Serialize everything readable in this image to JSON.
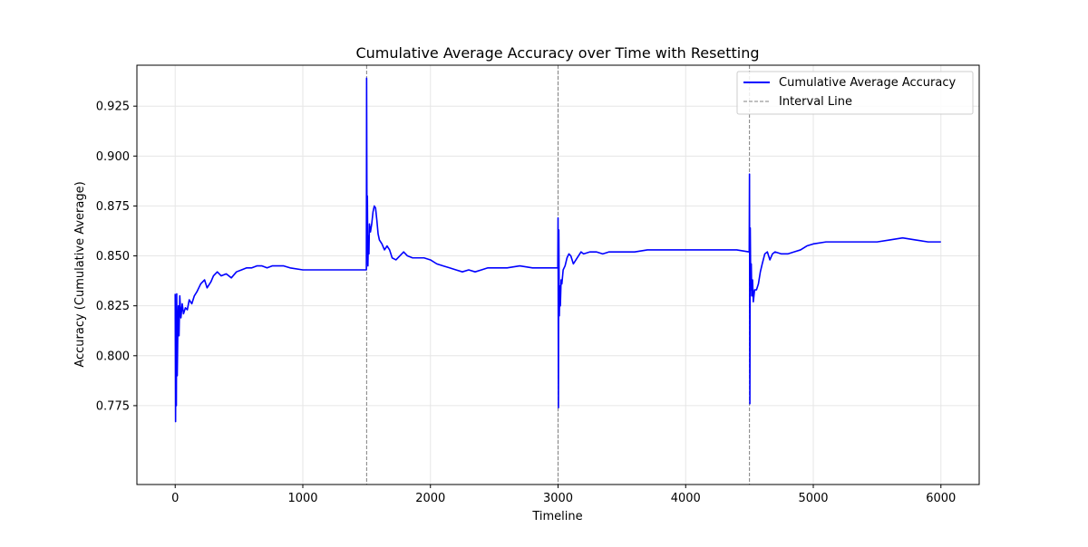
{
  "chart_data": {
    "type": "line",
    "title": "Cumulative Average Accuracy over Time with Resetting",
    "xlabel": "Timeline",
    "ylabel": "Accuracy (Cumulative Average)",
    "xlim": [
      -300,
      6300
    ],
    "ylim": [
      0.7355,
      0.9455
    ],
    "x_ticks": [
      0,
      1000,
      2000,
      3000,
      4000,
      5000,
      6000
    ],
    "x_tick_labels": [
      "0",
      "1000",
      "2000",
      "3000",
      "4000",
      "5000",
      "6000"
    ],
    "y_ticks": [
      0.775,
      0.8,
      0.825,
      0.85,
      0.875,
      0.9,
      0.925
    ],
    "y_tick_labels": [
      "0.775",
      "0.800",
      "0.825",
      "0.850",
      "0.875",
      "0.900",
      "0.925"
    ],
    "grid": true,
    "legend_position": "upper right",
    "colors": {
      "series": "#0000ff",
      "interval_line": "#808080",
      "grid": "#e6e6e6",
      "axes": "#000000"
    },
    "series": [
      {
        "name": "Cumulative Average Accuracy",
        "style": "solid",
        "points": [
          [
            0,
            0.831
          ],
          [
            3,
            0.767
          ],
          [
            6,
            0.822
          ],
          [
            9,
            0.775
          ],
          [
            12,
            0.831
          ],
          [
            16,
            0.79
          ],
          [
            20,
            0.809
          ],
          [
            25,
            0.825
          ],
          [
            30,
            0.81
          ],
          [
            36,
            0.83
          ],
          [
            45,
            0.819
          ],
          [
            55,
            0.826
          ],
          [
            65,
            0.821
          ],
          [
            80,
            0.824
          ],
          [
            95,
            0.823
          ],
          [
            110,
            0.828
          ],
          [
            130,
            0.826
          ],
          [
            150,
            0.83
          ],
          [
            170,
            0.832
          ],
          [
            200,
            0.836
          ],
          [
            230,
            0.838
          ],
          [
            250,
            0.834
          ],
          [
            280,
            0.837
          ],
          [
            300,
            0.84
          ],
          [
            330,
            0.842
          ],
          [
            360,
            0.84
          ],
          [
            400,
            0.841
          ],
          [
            440,
            0.839
          ],
          [
            480,
            0.842
          ],
          [
            520,
            0.843
          ],
          [
            560,
            0.844
          ],
          [
            600,
            0.844
          ],
          [
            640,
            0.845
          ],
          [
            680,
            0.845
          ],
          [
            720,
            0.844
          ],
          [
            760,
            0.845
          ],
          [
            800,
            0.845
          ],
          [
            850,
            0.845
          ],
          [
            900,
            0.844
          ],
          [
            1000,
            0.843
          ],
          [
            1100,
            0.843
          ],
          [
            1200,
            0.843
          ],
          [
            1300,
            0.843
          ],
          [
            1400,
            0.843
          ],
          [
            1498,
            0.843
          ],
          [
            1500,
            0.939
          ],
          [
            1503,
            0.862
          ],
          [
            1506,
            0.88
          ],
          [
            1510,
            0.845
          ],
          [
            1514,
            0.86
          ],
          [
            1518,
            0.851
          ],
          [
            1522,
            0.866
          ],
          [
            1530,
            0.862
          ],
          [
            1540,
            0.866
          ],
          [
            1550,
            0.872
          ],
          [
            1560,
            0.875
          ],
          [
            1570,
            0.874
          ],
          [
            1580,
            0.868
          ],
          [
            1590,
            0.861
          ],
          [
            1600,
            0.858
          ],
          [
            1620,
            0.856
          ],
          [
            1640,
            0.853
          ],
          [
            1660,
            0.855
          ],
          [
            1680,
            0.853
          ],
          [
            1700,
            0.849
          ],
          [
            1730,
            0.848
          ],
          [
            1760,
            0.85
          ],
          [
            1790,
            0.852
          ],
          [
            1820,
            0.85
          ],
          [
            1860,
            0.849
          ],
          [
            1900,
            0.849
          ],
          [
            1950,
            0.849
          ],
          [
            2000,
            0.848
          ],
          [
            2050,
            0.846
          ],
          [
            2100,
            0.845
          ],
          [
            2150,
            0.844
          ],
          [
            2200,
            0.843
          ],
          [
            2250,
            0.842
          ],
          [
            2300,
            0.843
          ],
          [
            2350,
            0.842
          ],
          [
            2400,
            0.843
          ],
          [
            2450,
            0.844
          ],
          [
            2500,
            0.844
          ],
          [
            2600,
            0.844
          ],
          [
            2700,
            0.845
          ],
          [
            2800,
            0.844
          ],
          [
            2900,
            0.844
          ],
          [
            2998,
            0.844
          ],
          [
            3000,
            0.869
          ],
          [
            3003,
            0.774
          ],
          [
            3006,
            0.863
          ],
          [
            3010,
            0.82
          ],
          [
            3014,
            0.835
          ],
          [
            3018,
            0.825
          ],
          [
            3024,
            0.838
          ],
          [
            3030,
            0.836
          ],
          [
            3040,
            0.843
          ],
          [
            3055,
            0.845
          ],
          [
            3070,
            0.849
          ],
          [
            3085,
            0.851
          ],
          [
            3100,
            0.85
          ],
          [
            3120,
            0.846
          ],
          [
            3140,
            0.848
          ],
          [
            3160,
            0.85
          ],
          [
            3180,
            0.852
          ],
          [
            3200,
            0.851
          ],
          [
            3250,
            0.852
          ],
          [
            3300,
            0.852
          ],
          [
            3350,
            0.851
          ],
          [
            3400,
            0.852
          ],
          [
            3500,
            0.852
          ],
          [
            3600,
            0.852
          ],
          [
            3700,
            0.853
          ],
          [
            3800,
            0.853
          ],
          [
            3900,
            0.853
          ],
          [
            4000,
            0.853
          ],
          [
            4100,
            0.853
          ],
          [
            4200,
            0.853
          ],
          [
            4300,
            0.853
          ],
          [
            4400,
            0.853
          ],
          [
            4498,
            0.852
          ],
          [
            4500,
            0.891
          ],
          [
            4503,
            0.776
          ],
          [
            4506,
            0.864
          ],
          [
            4510,
            0.833
          ],
          [
            4514,
            0.846
          ],
          [
            4518,
            0.83
          ],
          [
            4524,
            0.838
          ],
          [
            4530,
            0.827
          ],
          [
            4540,
            0.833
          ],
          [
            4555,
            0.833
          ],
          [
            4570,
            0.836
          ],
          [
            4585,
            0.842
          ],
          [
            4600,
            0.846
          ],
          [
            4620,
            0.851
          ],
          [
            4640,
            0.852
          ],
          [
            4660,
            0.848
          ],
          [
            4680,
            0.851
          ],
          [
            4700,
            0.852
          ],
          [
            4750,
            0.851
          ],
          [
            4800,
            0.851
          ],
          [
            4850,
            0.852
          ],
          [
            4900,
            0.853
          ],
          [
            4950,
            0.855
          ],
          [
            5000,
            0.856
          ],
          [
            5100,
            0.857
          ],
          [
            5200,
            0.857
          ],
          [
            5300,
            0.857
          ],
          [
            5400,
            0.857
          ],
          [
            5500,
            0.857
          ],
          [
            5600,
            0.858
          ],
          [
            5700,
            0.859
          ],
          [
            5800,
            0.858
          ],
          [
            5900,
            0.857
          ],
          [
            6000,
            0.857
          ]
        ]
      },
      {
        "name": "Interval Line",
        "style": "dashed",
        "x_positions": [
          1500,
          3000,
          4500
        ]
      }
    ]
  }
}
